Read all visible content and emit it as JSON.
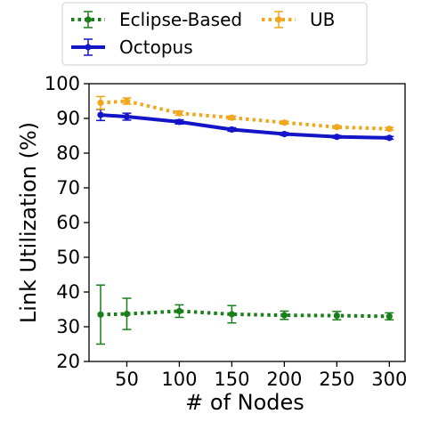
{
  "chart_data": {
    "type": "line",
    "xlabel": "# of Nodes",
    "ylabel": "Link Utilization (%)",
    "xlim": [
      14,
      315
    ],
    "ylim": [
      20,
      100
    ],
    "xticks": [
      50,
      100,
      150,
      200,
      250,
      300
    ],
    "yticks": [
      20,
      30,
      40,
      50,
      60,
      70,
      80,
      90,
      100
    ],
    "grid": false,
    "legend_position": "top",
    "series": [
      {
        "name": "Eclipse-Based",
        "color": "#1a7f1a",
        "line_style": "dotted",
        "x": [
          25,
          50,
          100,
          150,
          200,
          250,
          300
        ],
        "values": [
          33.5,
          33.7,
          34.5,
          33.6,
          33.3,
          33.2,
          33.0
        ],
        "err": [
          8.5,
          4.5,
          1.8,
          2.5,
          1.2,
          1.2,
          1.0
        ]
      },
      {
        "name": "Octopus",
        "color": "#1515c8",
        "line_style": "solid",
        "x": [
          25,
          50,
          100,
          150,
          200,
          250,
          300
        ],
        "values": [
          91.0,
          90.5,
          89.0,
          86.8,
          85.5,
          84.7,
          84.4
        ],
        "err": [
          1.6,
          1.0,
          0.6,
          0.5,
          0.4,
          0.4,
          0.4
        ]
      },
      {
        "name": "UB",
        "color": "#f0a71e",
        "line_style": "dotted",
        "x": [
          25,
          50,
          100,
          150,
          200,
          250,
          300
        ],
        "values": [
          94.5,
          95.0,
          91.5,
          90.2,
          88.8,
          87.5,
          87.0
        ],
        "err": [
          1.8,
          0.9,
          0.6,
          0.5,
          0.4,
          0.4,
          0.4
        ]
      }
    ]
  }
}
